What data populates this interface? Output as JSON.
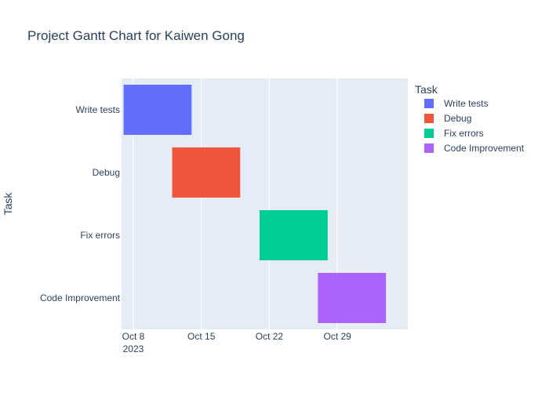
{
  "chart_data": {
    "type": "gantt",
    "title": "Project Gantt Chart for Kaiwen Gong",
    "xlabel": "",
    "ylabel": "Task",
    "x_range": [
      "2023-10-06T19:00",
      "2023-11-05T06:00"
    ],
    "grid": true,
    "legend": {
      "title": "Task",
      "placement": "right"
    },
    "x_ticks": [
      {
        "date": "2023-10-08",
        "label": "Oct 8",
        "sublabel": "2023"
      },
      {
        "date": "2023-10-15",
        "label": "Oct 15",
        "sublabel": ""
      },
      {
        "date": "2023-10-22",
        "label": "Oct 22",
        "sublabel": ""
      },
      {
        "date": "2023-10-29",
        "label": "Oct 29",
        "sublabel": ""
      }
    ],
    "tasks": [
      {
        "name": "Write tests",
        "start": "2023-10-07",
        "end": "2023-10-14",
        "color": "#636efa"
      },
      {
        "name": "Debug",
        "start": "2023-10-12",
        "end": "2023-10-19",
        "color": "#ef553b"
      },
      {
        "name": "Fix errors",
        "start": "2023-10-21",
        "end": "2023-10-28",
        "color": "#00cc96"
      },
      {
        "name": "Code Improvement",
        "start": "2023-10-27",
        "end": "2023-11-03",
        "color": "#ab63fa"
      }
    ],
    "colors": {
      "plot_bg": "#e5ecf6",
      "grid": "#ffffff",
      "text": "#2a3f5f"
    }
  }
}
